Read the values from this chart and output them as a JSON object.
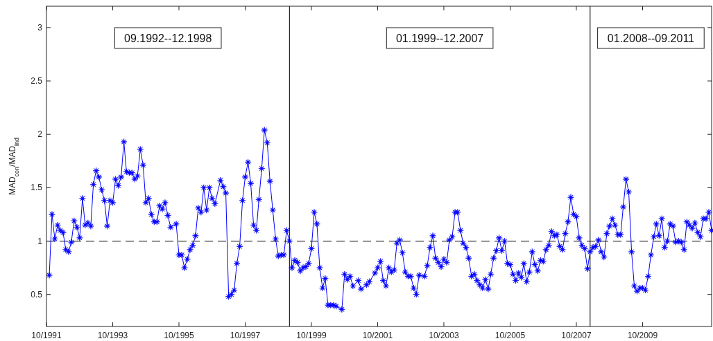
{
  "chart_data": {
    "type": "line",
    "ylabel": "MAD$_{con}$/MAD$_{ind}$",
    "xlim": [
      "1991-10",
      "2011-11"
    ],
    "ylim": [
      0.2,
      3.2
    ],
    "xticks": [
      {
        "value": "1991-10",
        "label": "10/1991"
      },
      {
        "value": "1993-10",
        "label": "10/1993"
      },
      {
        "value": "1995-10",
        "label": "10/1995"
      },
      {
        "value": "1997-10",
        "label": "10/1997"
      },
      {
        "value": "1999-10",
        "label": "10/1999"
      },
      {
        "value": "2001-10",
        "label": "10/2001"
      },
      {
        "value": "2003-10",
        "label": "10/2003"
      },
      {
        "value": "2005-10",
        "label": "10/2005"
      },
      {
        "value": "2007-10",
        "label": "10/2007"
      },
      {
        "value": "2009-10",
        "label": "10/2009"
      }
    ],
    "yticks": [
      0.5,
      1,
      1.5,
      2,
      2.5,
      3
    ],
    "grid": false,
    "marker": "star",
    "line_style": "solid",
    "annotations": [
      "09.1992--12.1998",
      "01.1999--12.2007",
      "01.2008--09.2011"
    ],
    "ref_lines": [
      {
        "axis": "y",
        "value": 1,
        "color": "#333333",
        "line_style": "dashed"
      },
      {
        "axis": "x",
        "value": "1999-02",
        "color": "#000000",
        "line_style": "solid"
      },
      {
        "axis": "x",
        "value": "2008-03",
        "color": "#000000",
        "line_style": "solid"
      }
    ],
    "series": [
      {
        "color": "#0000ff",
        "x": [
          "1991-11",
          "1991-12",
          "1992-01",
          "1992-02",
          "1992-03",
          "1992-04",
          "1992-05",
          "1992-06",
          "1992-07",
          "1992-08",
          "1992-09",
          "1992-10",
          "1992-11",
          "1992-12",
          "1993-01",
          "1993-02",
          "1993-03",
          "1993-04",
          "1993-05",
          "1993-06",
          "1993-07",
          "1993-08",
          "1993-09",
          "1993-10",
          "1993-11",
          "1993-12",
          "1994-01",
          "1994-02",
          "1994-03",
          "1994-04",
          "1994-05",
          "1994-06",
          "1994-07",
          "1994-08",
          "1994-09",
          "1994-10",
          "1994-11",
          "1994-12",
          "1995-01",
          "1995-02",
          "1995-03",
          "1995-04",
          "1995-05",
          "1995-06",
          "1995-07",
          "1995-09",
          "1995-10",
          "1995-11",
          "1995-12",
          "1996-01",
          "1996-02",
          "1996-03",
          "1996-04",
          "1996-05",
          "1996-06",
          "1996-07",
          "1996-08",
          "1996-09",
          "1996-10",
          "1996-11",
          "1997-01",
          "1997-02",
          "1997-03",
          "1997-04",
          "1997-05",
          "1997-06",
          "1997-07",
          "1997-08",
          "1997-09",
          "1997-10",
          "1997-11",
          "1997-12",
          "1998-01",
          "1998-02",
          "1998-03",
          "1998-04",
          "1998-05",
          "1998-06",
          "1998-07",
          "1998-08",
          "1998-09",
          "1998-10",
          "1998-11",
          "1998-12",
          "1999-01",
          "1999-02",
          "1999-03",
          "1999-04",
          "1999-05",
          "1999-06",
          "1999-07",
          "1999-08",
          "1999-09",
          "1999-10",
          "1999-11",
          "1999-12",
          "2000-01",
          "2000-02",
          "2000-03",
          "2000-04",
          "2000-05",
          "2000-06",
          "2000-07",
          "2000-09",
          "2000-10",
          "2000-11",
          "2000-12",
          "2001-01",
          "2001-03",
          "2001-04",
          "2001-06",
          "2001-07",
          "2001-09",
          "2001-10",
          "2001-11",
          "2001-12",
          "2002-01",
          "2002-02",
          "2002-03",
          "2002-04",
          "2002-05",
          "2002-06",
          "2002-07",
          "2002-08",
          "2002-09",
          "2002-10",
          "2002-11",
          "2002-12",
          "2003-01",
          "2003-03",
          "2003-04",
          "2003-05",
          "2003-06",
          "2003-07",
          "2003-08",
          "2003-09",
          "2003-10",
          "2003-11",
          "2003-12",
          "2004-01",
          "2004-02",
          "2004-03",
          "2004-04",
          "2004-05",
          "2004-06",
          "2004-07",
          "2004-08",
          "2004-09",
          "2004-10",
          "2004-11",
          "2004-12",
          "2005-01",
          "2005-02",
          "2005-03",
          "2005-04",
          "2005-05",
          "2005-06",
          "2005-07",
          "2005-08",
          "2005-09",
          "2005-10",
          "2005-11",
          "2005-12",
          "2006-01",
          "2006-02",
          "2006-03",
          "2006-04",
          "2006-05",
          "2006-06",
          "2006-07",
          "2006-08",
          "2006-09",
          "2006-10",
          "2006-11",
          "2006-12",
          "2007-01",
          "2007-02",
          "2007-03",
          "2007-04",
          "2007-05",
          "2007-06",
          "2007-07",
          "2007-08",
          "2007-09",
          "2007-10",
          "2007-11",
          "2007-12",
          "2008-01",
          "2008-02",
          "2008-03",
          "2008-04",
          "2008-05",
          "2008-06",
          "2008-07",
          "2008-08",
          "2008-09",
          "2008-10",
          "2008-11",
          "2008-12",
          "2009-01",
          "2009-02",
          "2009-03",
          "2009-04",
          "2009-05",
          "2009-06",
          "2009-07",
          "2009-08",
          "2009-09",
          "2009-10",
          "2009-11",
          "2009-12",
          "2010-01",
          "2010-02",
          "2010-03",
          "2010-04",
          "2010-05",
          "2010-06",
          "2010-07",
          "2010-08",
          "2010-09",
          "2010-10",
          "2010-11",
          "2010-12",
          "2011-01",
          "2011-02",
          "2011-03",
          "2011-04",
          "2011-05",
          "2011-06",
          "2011-07",
          "2011-08",
          "2011-09",
          "2011-10",
          "2011-11"
        ],
        "values": [
          0.68,
          1.25,
          1.02,
          1.15,
          1.1,
          1.08,
          0.92,
          0.9,
          0.99,
          1.19,
          1.13,
          1.03,
          1.4,
          1.15,
          1.17,
          1.14,
          1.53,
          1.66,
          1.6,
          1.48,
          1.38,
          1.14,
          1.38,
          1.36,
          1.58,
          1.52,
          1.6,
          1.93,
          1.65,
          1.64,
          1.64,
          1.58,
          1.61,
          1.86,
          1.71,
          1.36,
          1.4,
          1.25,
          1.18,
          1.18,
          1.33,
          1.3,
          1.36,
          1.24,
          1.13,
          1.16,
          0.87,
          0.87,
          0.75,
          0.83,
          0.92,
          0.96,
          1.05,
          1.31,
          1.27,
          1.5,
          1.29,
          1.5,
          1.4,
          1.35,
          1.57,
          1.51,
          1.45,
          0.48,
          0.5,
          0.54,
          0.79,
          0.95,
          1.38,
          1.6,
          1.74,
          1.54,
          1.15,
          1.1,
          1.39,
          1.68,
          2.04,
          1.92,
          1.56,
          1.29,
          1.02,
          0.86,
          0.87,
          0.87,
          1.1,
          1.0,
          0.75,
          0.82,
          0.8,
          0.72,
          0.75,
          0.76,
          0.79,
          0.93,
          1.27,
          1.16,
          0.75,
          0.56,
          0.65,
          0.4,
          0.4,
          0.4,
          0.39,
          0.36,
          0.69,
          0.64,
          0.67,
          0.58,
          0.63,
          0.55,
          0.59,
          0.62,
          0.7,
          0.75,
          0.81,
          0.63,
          0.58,
          0.75,
          0.71,
          0.73,
          0.98,
          1.01,
          0.89,
          0.71,
          0.67,
          0.67,
          0.56,
          0.5,
          0.68,
          0.67,
          0.77,
          0.94,
          1.05,
          0.84,
          0.8,
          0.76,
          0.83,
          0.8,
          1.01,
          1.04,
          1.27,
          1.27,
          1.1,
          0.98,
          0.94,
          0.84,
          0.67,
          0.69,
          0.63,
          0.59,
          0.56,
          0.64,
          0.55,
          0.69,
          0.84,
          0.91,
          1.03,
          0.91,
          1.0,
          0.79,
          0.78,
          0.69,
          0.63,
          0.7,
          0.66,
          0.79,
          0.62,
          0.71,
          0.9,
          0.78,
          0.72,
          0.82,
          0.81,
          0.92,
          0.96,
          1.09,
          1.05,
          1.06,
          0.95,
          0.92,
          1.07,
          1.18,
          1.41,
          1.25,
          1.23,
          1.03,
          0.96,
          0.93,
          0.74,
          0.9,
          0.94,
          0.95,
          1.01,
          0.9,
          0.85,
          1.07,
          1.14,
          1.21,
          1.15,
          1.06,
          1.06,
          1.32,
          1.58,
          1.46,
          0.9,
          0.58,
          0.53,
          0.56,
          0.56,
          0.54,
          0.67,
          0.87,
          1.04,
          1.16,
          1.05,
          1.21,
          0.94,
          1.0,
          1.16,
          1.14,
          0.99,
          1.0,
          0.99,
          0.92,
          1.18,
          1.15,
          1.12,
          1.17,
          1.08,
          1.04,
          1.21,
          1.21,
          1.27,
          1.1
        ]
      }
    ]
  }
}
